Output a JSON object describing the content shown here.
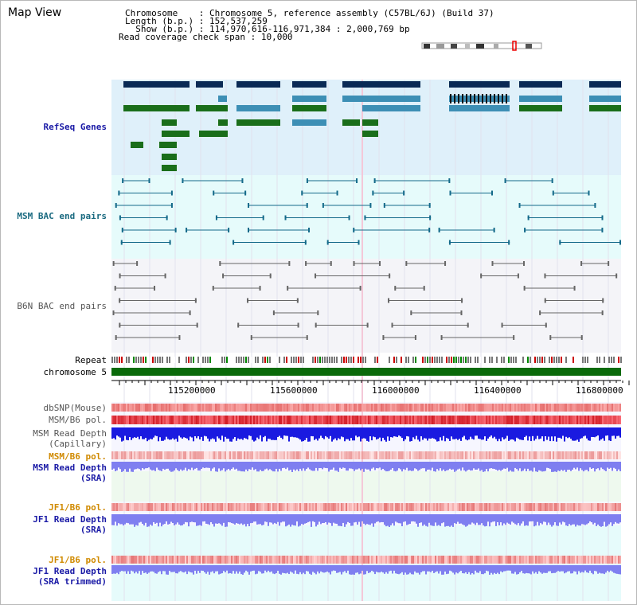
{
  "view": {
    "title": "Map View",
    "info": {
      "chromosome_key": "Chromosome",
      "chromosome_val": ": Chromosome 5, reference assembly (C57BL/6J) (Build 37)",
      "length_key": "Length (b.p.)",
      "length_val": ": 152,537,259",
      "show_key": "  Show (b.p.)",
      "show_val": ": 114,970,616-116,971,384 : 2,000,769 bp",
      "span_key": "Read coverage check span",
      "span_val": ": 10,000"
    }
  },
  "tracks": {
    "refseq": "RefSeq Genes",
    "msm_bac": "MSM BAC end pairs",
    "b6n_bac": "B6N BAC end pairs",
    "repeat": "Repeat",
    "chromosome": "chromosome 5",
    "dbsnp": "dbSNP(Mouse)",
    "msm_pol": "MSM/B6 pol.",
    "msm_depth_cap_1": "MSM Read Depth",
    "msm_depth_cap_2": "(Capillary)",
    "msm_pol_2": "MSM/B6 pol.",
    "msm_depth_sra_1": "MSM Read Depth",
    "msm_depth_sra_2": "(SRA)",
    "jf1_pol": "JF1/B6 pol.",
    "jf1_depth_1": "JF1 Read Depth",
    "jf1_depth_2": "(SRA)",
    "jf1_pol_2": "JF1/B6 pol.",
    "jf1_trim_1": "JF1 Read Depth",
    "jf1_trim_2": "(SRA trimmed)"
  },
  "ruler": {
    "ticks": [
      "115200000",
      "115600000",
      "116000000",
      "116400000",
      "116800000"
    ]
  },
  "colors": {
    "label_blue": "#1a1aa6",
    "label_teal": "#1a6a80",
    "label_orange": "#d08a00",
    "gene_dark": "#0a2a55",
    "gene_mid": "#3d8fb5",
    "gene_green": "#1a6e1a",
    "depth_blue": "#1a1ae0",
    "depth_light": "#7f7ff0",
    "pol_red": "#e83030"
  }
}
